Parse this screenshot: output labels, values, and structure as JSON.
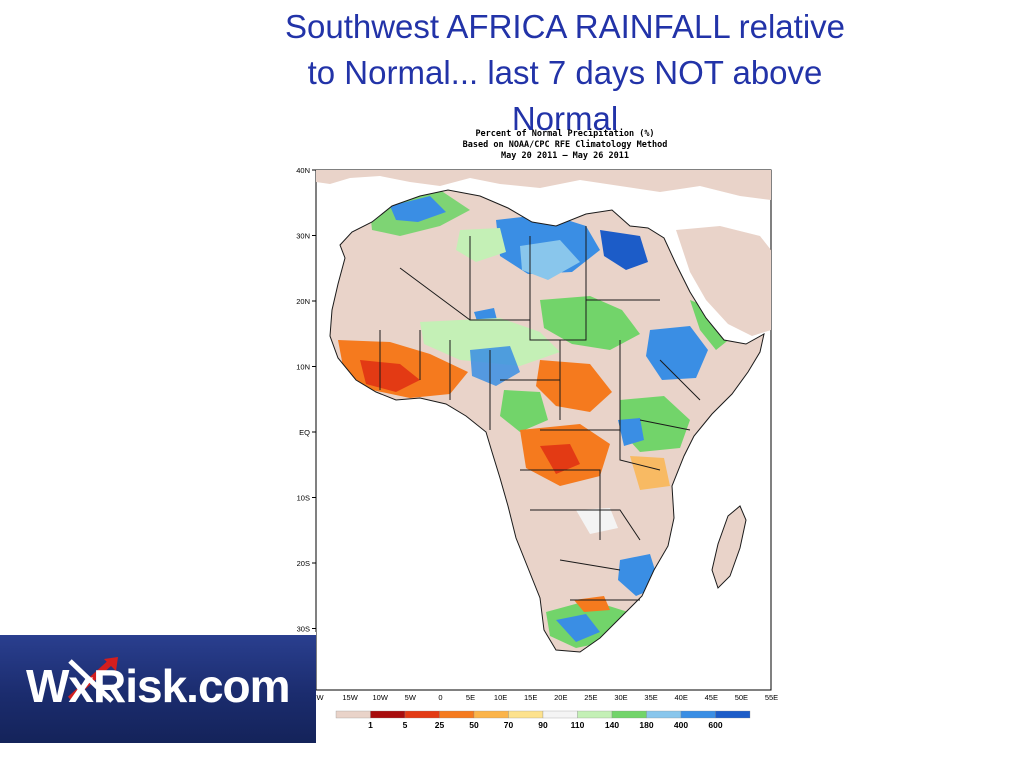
{
  "slide": {
    "title_lines": [
      "Southwest AFRICA   RAINFALL    relative",
      "to Normal...  last 7 days    NOT   above",
      "Normal"
    ]
  },
  "map": {
    "header_lines": [
      "Percent of Normal Precipitation (%)",
      "Based on NOAA/CPC RFE Climatology Method",
      "May 20 2011 – May 26 2011"
    ],
    "lat_labels": [
      "40N",
      "30N",
      "20N",
      "10N",
      "EQ",
      "10S",
      "20S",
      "30S"
    ],
    "lon_labels": [
      "W",
      "15W",
      "10W",
      "5W",
      "0",
      "5E",
      "10E",
      "15E",
      "20E",
      "25E",
      "30E",
      "35E",
      "40E",
      "45E",
      "50E",
      "55E"
    ]
  },
  "legend": {
    "labels": [
      "1",
      "5",
      "25",
      "50",
      "70",
      "90",
      "110",
      "140",
      "180",
      "400",
      "600"
    ],
    "colors": [
      "#e9d3c9",
      "#a80d0d",
      "#e33a14",
      "#f57a1e",
      "#fbb44a",
      "#fde28e",
      "#f4f4f4",
      "#c4f0b6",
      "#72d46a",
      "#89c6ec",
      "#3a8ee4",
      "#1c5cc8"
    ]
  },
  "logo": {
    "text": "WxRisk.com",
    "colors": {
      "background": "#1f3276",
      "arrow_red": "#d31e1e",
      "arrow_white": "#ffffff"
    }
  },
  "colors": {
    "title": "#2233a8",
    "land_base": "#e9d3c9",
    "border_lines": "#1a1a1a"
  }
}
